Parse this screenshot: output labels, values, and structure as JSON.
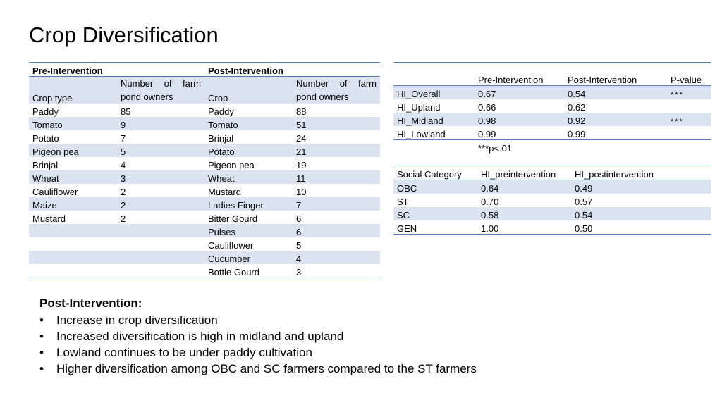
{
  "title": "Crop Diversification",
  "crop_table": {
    "pre_label": "Pre-Intervention",
    "post_label": "Post-Intervention",
    "headers": [
      "Crop type",
      "Number of farm pond owners",
      "Crop",
      "Number of farm pond owners"
    ],
    "rows": [
      [
        "Paddy",
        "85",
        "Paddy",
        "88"
      ],
      [
        "Tomato",
        "9",
        "Tomato",
        "51"
      ],
      [
        "Potato",
        "7",
        "Brinjal",
        "24"
      ],
      [
        "Pigeon pea",
        "5",
        "Potato",
        "21"
      ],
      [
        "Brinjal",
        "4",
        "Pigeon pea",
        "19"
      ],
      [
        "Wheat",
        "3",
        "Wheat",
        "11"
      ],
      [
        "Cauliflower",
        "2",
        "Mustard",
        "10"
      ],
      [
        "Maize",
        "2",
        "Ladies Finger",
        "7"
      ],
      [
        "Mustard",
        "2",
        "Bitter Gourd",
        "6"
      ],
      [
        "",
        "",
        "Pulses",
        "6"
      ],
      [
        "",
        "",
        "Cauliflower",
        "5"
      ],
      [
        "",
        "",
        "Cucumber",
        "4"
      ],
      [
        "",
        "",
        "Bottle Gourd",
        "3"
      ]
    ]
  },
  "hi_table": {
    "headers": [
      "",
      "Pre-Intervention",
      "Post-Intervention",
      "P-value"
    ],
    "rows": [
      [
        "HI_Overall",
        "0.67",
        "0.54",
        "***"
      ],
      [
        "HI_Upland",
        "0.66",
        "0.62",
        ""
      ],
      [
        "HI_Midland",
        "0.98",
        "0.92",
        "***"
      ],
      [
        "HI_Lowland",
        "0.99",
        "0.99",
        ""
      ]
    ],
    "note": "***p<.01"
  },
  "social_table": {
    "headers": [
      "Social Category",
      "HI_preintervention",
      "HI_postintervention"
    ],
    "rows": [
      [
        "OBC",
        "0.64",
        "0.49"
      ],
      [
        "ST",
        "0.70",
        "0.57"
      ],
      [
        "SC",
        "0.58",
        "0.54"
      ],
      [
        "GEN",
        "1.00",
        "0.50"
      ]
    ]
  },
  "notes": {
    "heading": "Post-Intervention:",
    "bullet": "•",
    "items": [
      "Increase in crop diversification",
      "Increased diversification is high in midland and upland",
      "Lowland continues to be under paddy cultivation",
      "Higher diversification among OBC and SC farmers compared to the ST farmers"
    ]
  }
}
